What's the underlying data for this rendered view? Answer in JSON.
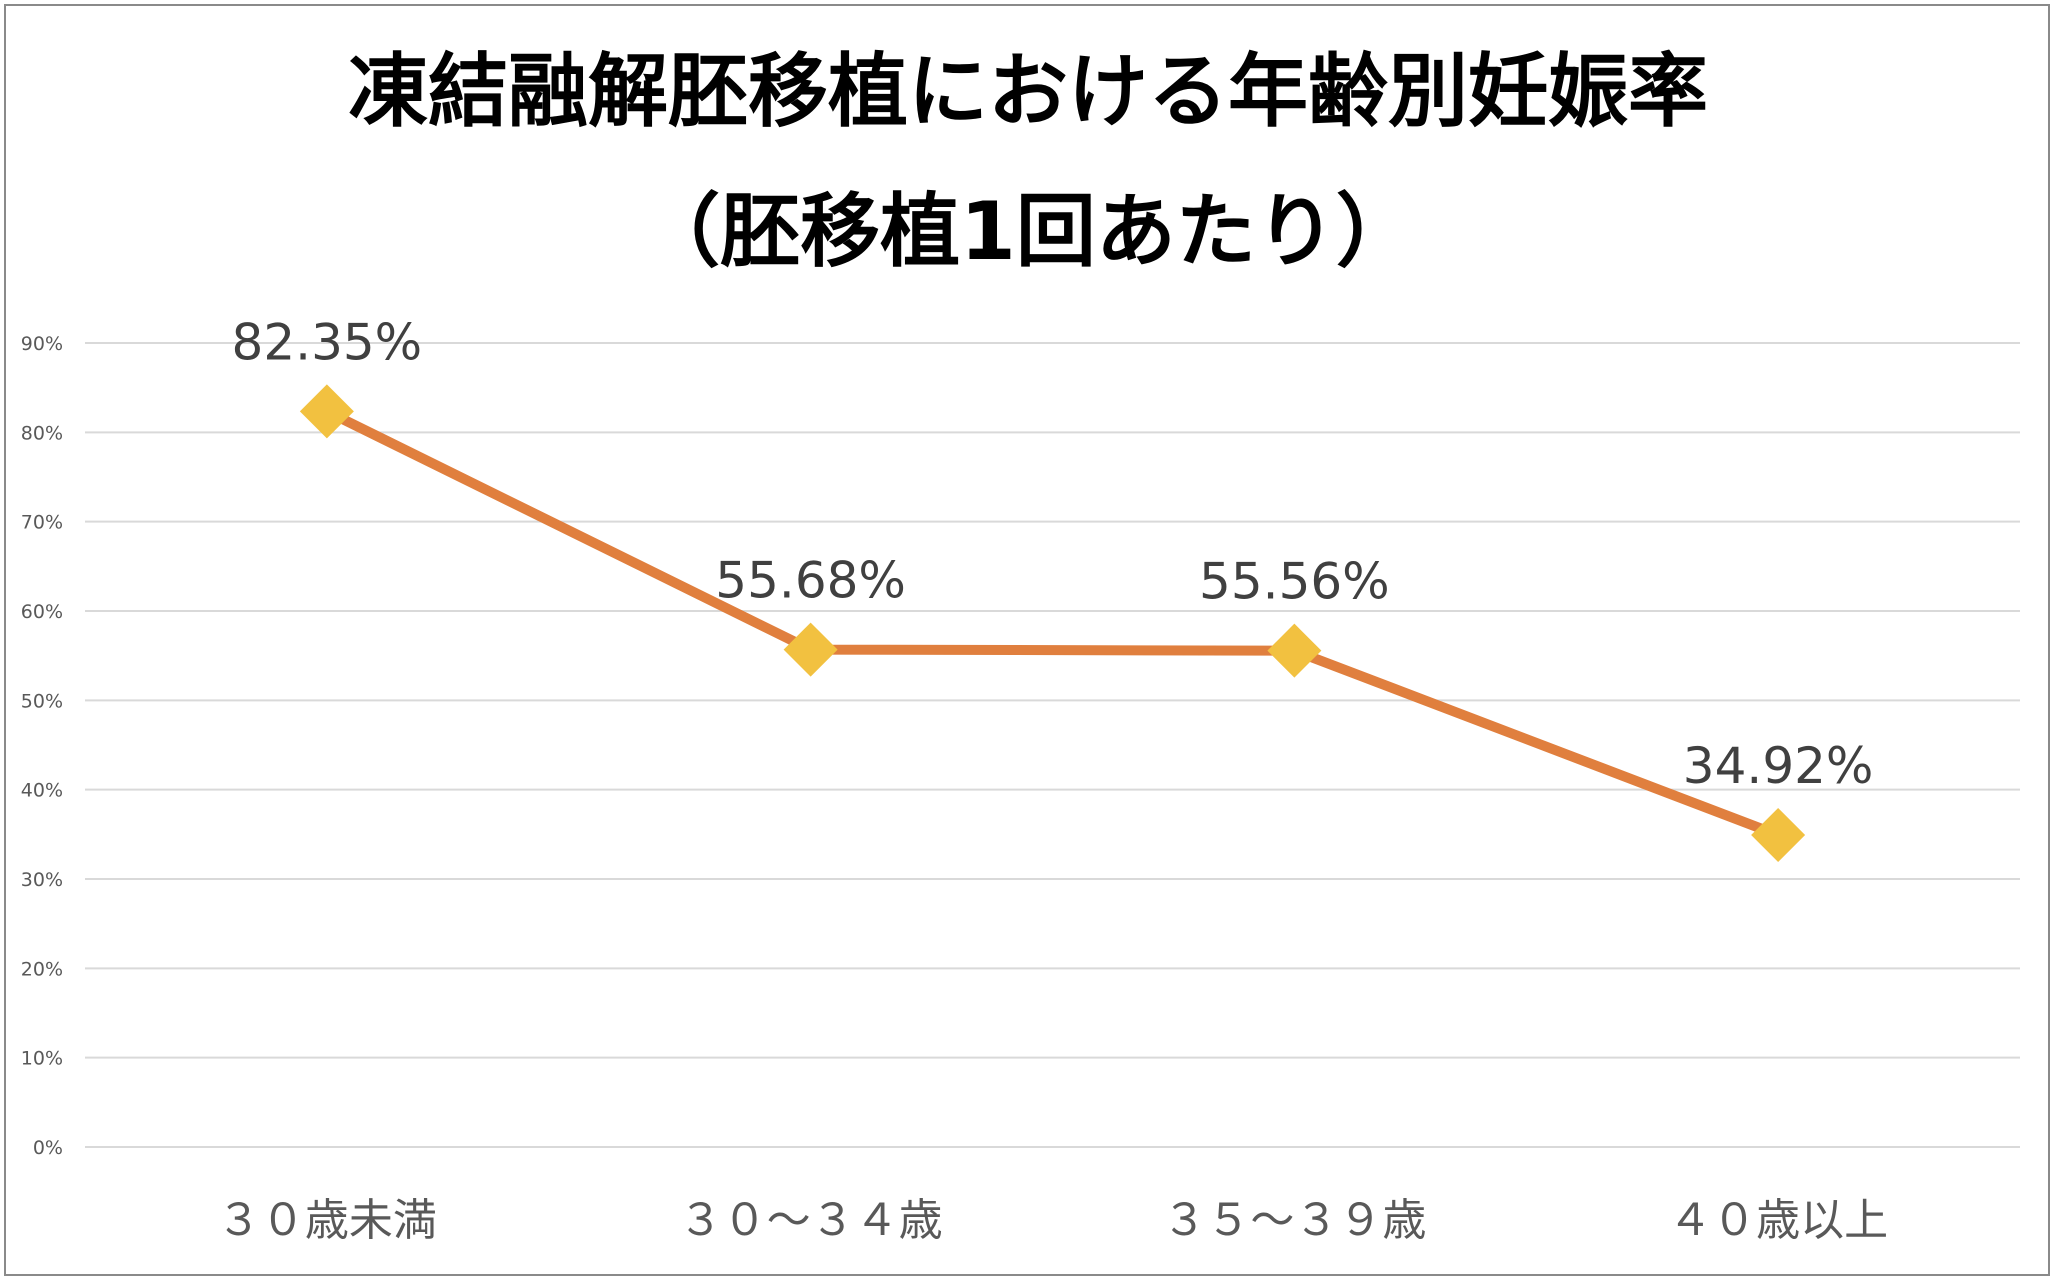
{
  "chart_data": {
    "type": "line",
    "title": "凍結融解胚移植における年齢別妊娠率",
    "subtitle": "（胚移植1回あたり）",
    "xlabel": "",
    "ylabel": "",
    "categories": [
      "３０歳未満",
      "３０～３４歳",
      "３５～３９歳",
      "４０歳以上"
    ],
    "series": [
      {
        "values": [
          82.35,
          55.68,
          55.56,
          34.92
        ],
        "data_labels": [
          "82.35%",
          "55.68%",
          "55.56%",
          "34.92%"
        ]
      }
    ],
    "ylim": [
      0,
      90
    ],
    "yticks": [
      0,
      10,
      20,
      30,
      40,
      50,
      60,
      70,
      80,
      90
    ],
    "ytick_labels": [
      "0%",
      "10%",
      "20%",
      "30%",
      "40%",
      "50%",
      "60%",
      "70%",
      "80%",
      "90%"
    ],
    "grid": true,
    "legend": "none",
    "colors": {
      "line": "#E07F3E",
      "marker": "#F2C140",
      "gridline": "#D9D9D9",
      "tick_label": "#595959",
      "data_label": "#404040",
      "frame": "#8A8A8A"
    },
    "marker_shape": "diamond"
  }
}
